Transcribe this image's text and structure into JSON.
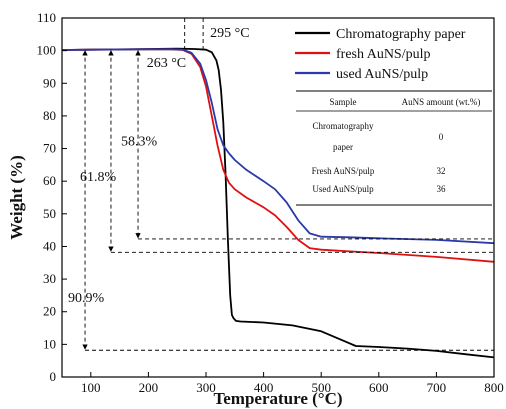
{
  "chart_data": {
    "type": "line",
    "xlabel": "Temperature (°C)",
    "ylabel": "Weight (%)",
    "xlim": [
      50,
      800
    ],
    "ylim": [
      0,
      110
    ],
    "xticks": [
      100,
      200,
      300,
      400,
      500,
      600,
      700,
      800
    ],
    "yticks": [
      0,
      10,
      20,
      30,
      40,
      50,
      60,
      70,
      80,
      90,
      100,
      110
    ],
    "grid": false,
    "legend_position": "top-right",
    "series": [
      {
        "name": "Chromatography paper",
        "color": "#000000",
        "x": [
          50,
          100,
          200,
          250,
          280,
          300,
          310,
          318,
          322,
          326,
          330,
          334,
          338,
          342,
          345,
          348,
          352,
          360,
          400,
          450,
          500,
          520,
          540,
          560,
          600,
          650,
          700,
          750,
          800
        ],
        "y": [
          100.2,
          100.3,
          100.5,
          100.6,
          100.5,
          100.3,
          99.5,
          97,
          94,
          88,
          78,
          62,
          42,
          25,
          19,
          18,
          17.2,
          17,
          16.7,
          15.8,
          14,
          12.5,
          11,
          9.5,
          9.2,
          8.7,
          8,
          7,
          6
        ]
      },
      {
        "name": "fresh AuNS/pulp",
        "color": "#e01010",
        "x": [
          50,
          100,
          200,
          240,
          260,
          275,
          290,
          300,
          310,
          320,
          330,
          340,
          350,
          370,
          400,
          420,
          440,
          460,
          480,
          500,
          550,
          600,
          700,
          800
        ],
        "y": [
          100.2,
          100.3,
          100.4,
          100.4,
          100.2,
          99,
          95,
          89,
          80,
          71,
          63.5,
          59.5,
          57.5,
          55,
          52,
          49.5,
          46,
          42,
          39.5,
          39,
          38.5,
          38,
          36.8,
          35.3
        ]
      },
      {
        "name": "used AuNS/pulp",
        "color": "#2a3aa8",
        "x": [
          50,
          100,
          200,
          240,
          260,
          275,
          290,
          300,
          310,
          320,
          330,
          340,
          350,
          370,
          400,
          420,
          440,
          460,
          480,
          500,
          550,
          600,
          700,
          800
        ],
        "y": [
          100.2,
          100.3,
          100.4,
          100.4,
          100.3,
          99.3,
          96,
          91,
          84,
          76,
          71,
          68.5,
          66.5,
          63.5,
          60,
          57.5,
          53.5,
          48,
          44,
          43,
          42.8,
          42.5,
          42,
          41
        ]
      }
    ],
    "annotations": {
      "onset_temps": [
        {
          "x": 263,
          "label": "263 °C"
        },
        {
          "x": 295,
          "label": "295 °C"
        }
      ],
      "residues": [
        {
          "x": 90,
          "y_from": 100,
          "y_to": 8.2,
          "hline_to_x": 800,
          "label": "90.9%"
        },
        {
          "x": 135,
          "y_from": 100,
          "y_to": 38.2,
          "hline_to_x": 800,
          "label": "61.8%"
        },
        {
          "x": 182,
          "y_from": 100,
          "y_to": 42.3,
          "hline_to_x": 800,
          "label": "58.3%"
        }
      ]
    },
    "table": {
      "headers": [
        "Sample",
        "AuNS amount (wt.%)"
      ],
      "rows": [
        {
          "sample_lines": [
            "Chromatography",
            "paper"
          ],
          "amount": "0"
        },
        {
          "sample_lines": [
            "Fresh AuNS/pulp"
          ],
          "amount": "32"
        },
        {
          "sample_lines": [
            "Used AuNS/pulp"
          ],
          "amount": "36"
        }
      ]
    }
  }
}
